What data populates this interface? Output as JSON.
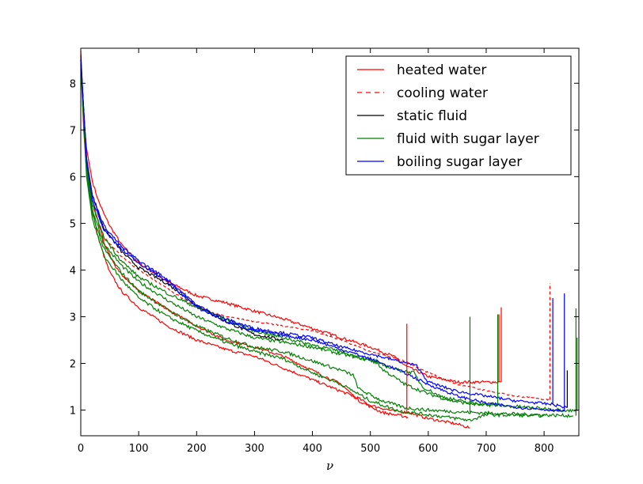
{
  "chart_data": {
    "type": "line",
    "title": "",
    "xlabel": "ν",
    "ylabel": "",
    "xlim": [
      0,
      860
    ],
    "ylim": [
      0.45,
      8.75
    ],
    "xticks": [
      0,
      100,
      200,
      300,
      400,
      500,
      600,
      700,
      800
    ],
    "yticks": [
      1,
      2,
      3,
      4,
      5,
      6,
      7,
      8
    ],
    "grid": false,
    "legend_position": "top-right",
    "legend": [
      {
        "label": "heated water",
        "color": "#ff0000",
        "dash": "solid"
      },
      {
        "label": "cooling water",
        "color": "#ff0000",
        "dash": "dashed"
      },
      {
        "label": "static fluid",
        "color": "#000000",
        "dash": "solid"
      },
      {
        "label": "fluid with sugar layer",
        "color": "#008000",
        "dash": "solid"
      },
      {
        "label": "boiling sugar layer",
        "color": "#0000ff",
        "dash": "solid"
      }
    ],
    "series": [
      {
        "color": "#ff0000",
        "dash": "solid",
        "noise": 0.03,
        "points": [
          [
            0,
            8.7
          ],
          [
            5,
            7.3
          ],
          [
            10,
            6.6
          ],
          [
            20,
            5.9
          ],
          [
            30,
            5.5
          ],
          [
            40,
            5.2
          ],
          [
            50,
            4.95
          ],
          [
            70,
            4.55
          ],
          [
            100,
            4.15
          ],
          [
            150,
            3.75
          ],
          [
            200,
            3.45
          ],
          [
            250,
            3.3
          ],
          [
            300,
            3.12
          ],
          [
            350,
            2.95
          ],
          [
            400,
            2.75
          ],
          [
            450,
            2.55
          ],
          [
            500,
            2.35
          ],
          [
            540,
            2.15
          ],
          [
            560,
            1.95
          ],
          [
            600,
            1.72
          ],
          [
            650,
            1.6
          ],
          [
            700,
            1.6
          ],
          [
            725,
            1.6
          ]
        ]
      },
      {
        "color": "#ff0000",
        "dash": "solid",
        "noise": 0.03,
        "points": [
          [
            0,
            8.6
          ],
          [
            5,
            7.0
          ],
          [
            10,
            6.1
          ],
          [
            20,
            5.3
          ],
          [
            30,
            4.7
          ],
          [
            40,
            4.3
          ],
          [
            50,
            3.95
          ],
          [
            70,
            3.55
          ],
          [
            100,
            3.2
          ],
          [
            150,
            2.8
          ],
          [
            200,
            2.5
          ],
          [
            250,
            2.3
          ],
          [
            300,
            2.15
          ],
          [
            350,
            1.9
          ],
          [
            400,
            1.65
          ],
          [
            450,
            1.4
          ],
          [
            480,
            1.25
          ],
          [
            500,
            1.1
          ],
          [
            540,
            0.98
          ],
          [
            565,
            0.95
          ],
          [
            600,
            0.82
          ],
          [
            650,
            0.7
          ],
          [
            672,
            0.62
          ]
        ]
      },
      {
        "color": "#ff0000",
        "dash": "solid",
        "noise": 0.03,
        "points": [
          [
            0,
            8.5
          ],
          [
            10,
            6.3
          ],
          [
            20,
            5.5
          ],
          [
            40,
            4.6
          ],
          [
            60,
            4.05
          ],
          [
            100,
            3.55
          ],
          [
            150,
            3.15
          ],
          [
            200,
            2.8
          ],
          [
            250,
            2.5
          ],
          [
            300,
            2.35
          ],
          [
            350,
            2.15
          ],
          [
            400,
            1.85
          ],
          [
            450,
            1.55
          ],
          [
            480,
            1.2
          ],
          [
            520,
            0.95
          ],
          [
            565,
            0.85
          ]
        ]
      },
      {
        "color": "#ff0000",
        "dash": "dashed",
        "noise": 0.015,
        "points": [
          [
            0,
            8.5
          ],
          [
            10,
            6.2
          ],
          [
            20,
            5.4
          ],
          [
            40,
            4.7
          ],
          [
            70,
            4.3
          ],
          [
            100,
            4.0
          ],
          [
            150,
            3.6
          ],
          [
            200,
            3.2
          ],
          [
            250,
            3.0
          ],
          [
            300,
            2.9
          ],
          [
            400,
            2.7
          ],
          [
            450,
            2.5
          ],
          [
            500,
            2.25
          ],
          [
            560,
            2.05
          ],
          [
            600,
            1.8
          ],
          [
            650,
            1.55
          ],
          [
            700,
            1.42
          ],
          [
            750,
            1.3
          ],
          [
            810,
            1.22
          ]
        ]
      },
      {
        "color": "#000000",
        "dash": "solid",
        "noise": 0.03,
        "points": [
          [
            0,
            8.5
          ],
          [
            10,
            6.4
          ],
          [
            20,
            5.6
          ],
          [
            40,
            4.9
          ],
          [
            70,
            4.4
          ],
          [
            100,
            4.05
          ],
          [
            150,
            3.7
          ],
          [
            200,
            3.25
          ],
          [
            250,
            2.9
          ],
          [
            300,
            2.62
          ],
          [
            350,
            2.5
          ]
        ]
      },
      {
        "color": "#008000",
        "dash": "solid",
        "noise": 0.035,
        "points": [
          [
            0,
            8.4
          ],
          [
            10,
            6.2
          ],
          [
            20,
            5.3
          ],
          [
            40,
            4.55
          ],
          [
            70,
            4.1
          ],
          [
            100,
            3.75
          ],
          [
            150,
            3.35
          ],
          [
            200,
            3.0
          ],
          [
            250,
            2.75
          ],
          [
            300,
            2.55
          ],
          [
            350,
            2.45
          ],
          [
            400,
            2.35
          ],
          [
            450,
            2.2
          ],
          [
            510,
            2.05
          ],
          [
            520,
            1.88
          ],
          [
            560,
            1.55
          ],
          [
            600,
            1.35
          ],
          [
            640,
            1.2
          ],
          [
            680,
            1.12
          ],
          [
            720,
            1.1
          ]
        ]
      },
      {
        "color": "#008000",
        "dash": "solid",
        "noise": 0.035,
        "points": [
          [
            0,
            8.4
          ],
          [
            10,
            6.1
          ],
          [
            20,
            5.2
          ],
          [
            40,
            4.45
          ],
          [
            70,
            3.95
          ],
          [
            100,
            3.55
          ],
          [
            150,
            3.15
          ],
          [
            200,
            2.8
          ],
          [
            250,
            2.55
          ],
          [
            300,
            2.35
          ],
          [
            350,
            2.25
          ],
          [
            400,
            2.05
          ],
          [
            450,
            1.85
          ],
          [
            470,
            1.75
          ],
          [
            480,
            1.45
          ],
          [
            520,
            1.2
          ],
          [
            560,
            1.05
          ],
          [
            600,
            1.0
          ],
          [
            640,
            0.97
          ],
          [
            672,
            0.95
          ],
          [
            720,
            0.93
          ],
          [
            780,
            0.9
          ],
          [
            850,
            0.88
          ]
        ]
      },
      {
        "color": "#008000",
        "dash": "solid",
        "noise": 0.035,
        "points": [
          [
            0,
            8.3
          ],
          [
            10,
            6.0
          ],
          [
            20,
            5.1
          ],
          [
            40,
            4.3
          ],
          [
            70,
            3.8
          ],
          [
            100,
            3.4
          ],
          [
            150,
            3.0
          ],
          [
            200,
            2.7
          ],
          [
            250,
            2.45
          ],
          [
            300,
            2.25
          ],
          [
            350,
            2.1
          ],
          [
            400,
            1.8
          ],
          [
            450,
            1.55
          ],
          [
            500,
            1.2
          ],
          [
            550,
            0.98
          ],
          [
            600,
            0.9
          ],
          [
            650,
            0.82
          ],
          [
            672,
            0.78
          ],
          [
            700,
            0.9
          ],
          [
            800,
            0.88
          ]
        ]
      },
      {
        "color": "#008000",
        "dash": "solid",
        "noise": 0.035,
        "points": [
          [
            0,
            8.4
          ],
          [
            10,
            6.3
          ],
          [
            20,
            5.4
          ],
          [
            40,
            4.7
          ],
          [
            70,
            4.2
          ],
          [
            100,
            3.85
          ],
          [
            150,
            3.5
          ],
          [
            200,
            3.2
          ],
          [
            250,
            2.95
          ],
          [
            300,
            2.7
          ],
          [
            350,
            2.55
          ],
          [
            400,
            2.4
          ],
          [
            450,
            2.25
          ],
          [
            500,
            2.05
          ],
          [
            550,
            1.85
          ],
          [
            575,
            1.8
          ],
          [
            590,
            1.5
          ],
          [
            620,
            1.3
          ],
          [
            660,
            1.18
          ],
          [
            700,
            1.12
          ],
          [
            780,
            1.05
          ],
          [
            855,
            0.98
          ]
        ]
      },
      {
        "color": "#0000ff",
        "dash": "solid",
        "noise": 0.03,
        "points": [
          [
            0,
            8.6
          ],
          [
            10,
            6.3
          ],
          [
            20,
            5.6
          ],
          [
            40,
            4.95
          ],
          [
            70,
            4.5
          ],
          [
            100,
            4.2
          ],
          [
            150,
            3.8
          ],
          [
            200,
            3.25
          ],
          [
            250,
            2.95
          ],
          [
            300,
            2.75
          ],
          [
            350,
            2.65
          ],
          [
            400,
            2.55
          ],
          [
            450,
            2.35
          ],
          [
            500,
            2.2
          ],
          [
            580,
            1.95
          ],
          [
            600,
            1.6
          ],
          [
            650,
            1.4
          ],
          [
            700,
            1.3
          ],
          [
            750,
            1.2
          ],
          [
            815,
            1.12
          ],
          [
            840,
            1.05
          ]
        ]
      },
      {
        "color": "#0000ff",
        "dash": "solid",
        "noise": 0.03,
        "points": [
          [
            0,
            8.5
          ],
          [
            10,
            6.4
          ],
          [
            20,
            5.5
          ],
          [
            40,
            4.85
          ],
          [
            70,
            4.45
          ],
          [
            100,
            4.15
          ],
          [
            150,
            3.75
          ],
          [
            200,
            3.2
          ],
          [
            250,
            2.9
          ],
          [
            300,
            2.7
          ],
          [
            350,
            2.6
          ],
          [
            400,
            2.5
          ],
          [
            450,
            2.3
          ],
          [
            500,
            2.1
          ],
          [
            550,
            1.85
          ],
          [
            600,
            1.55
          ],
          [
            650,
            1.3
          ],
          [
            700,
            1.15
          ],
          [
            760,
            1.05
          ],
          [
            815,
            1.0
          ],
          [
            835,
            0.98
          ]
        ]
      }
    ],
    "spikes": [
      {
        "x": 563,
        "top": 2.85,
        "base": 0.95,
        "color": "#ff0000",
        "dash": "solid"
      },
      {
        "x": 722,
        "top": 3.05,
        "base": 1.6,
        "color": "#ff0000",
        "dash": "solid"
      },
      {
        "x": 726,
        "top": 3.2,
        "base": 1.6,
        "color": "#ff0000",
        "dash": "solid"
      },
      {
        "x": 810,
        "top": 3.72,
        "base": 1.22,
        "color": "#ff0000",
        "dash": "dashed"
      },
      {
        "x": 672,
        "top": 3.0,
        "base": 0.95,
        "color": "#008000",
        "dash": "solid"
      },
      {
        "x": 720,
        "top": 3.05,
        "base": 1.1,
        "color": "#008000",
        "dash": "solid"
      },
      {
        "x": 855,
        "top": 3.18,
        "base": 0.88,
        "color": "#008000",
        "dash": "solid"
      },
      {
        "x": 857,
        "top": 2.55,
        "base": 0.98,
        "color": "#008000",
        "dash": "solid"
      },
      {
        "x": 815,
        "top": 3.4,
        "base": 1.12,
        "color": "#0000ff",
        "dash": "solid"
      },
      {
        "x": 835,
        "top": 3.5,
        "base": 0.98,
        "color": "#0000ff",
        "dash": "solid"
      },
      {
        "x": 840,
        "top": 1.85,
        "base": 1.05,
        "color": "#000000",
        "dash": "solid"
      }
    ]
  }
}
